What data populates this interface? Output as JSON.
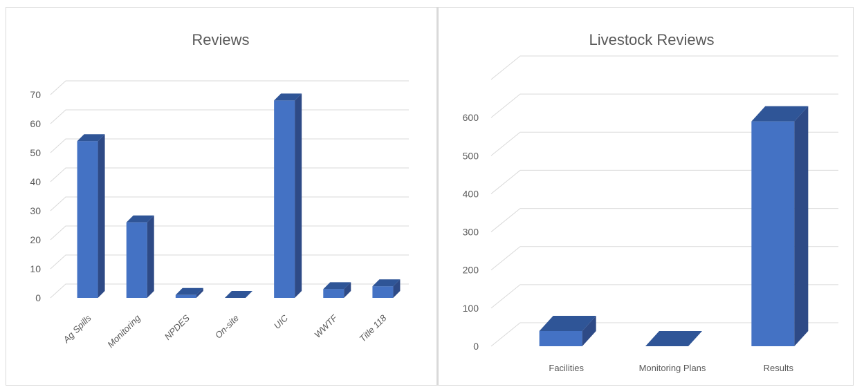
{
  "colors": {
    "bar_front": "#4472C4",
    "bar_top": "#2F5597",
    "bar_side": "#2E4A86",
    "grid": "#d9d9d9",
    "text": "#595959"
  },
  "chart_data": [
    {
      "type": "bar",
      "title": "Reviews",
      "xlabel": "",
      "ylabel": "",
      "ylim": [
        0,
        70
      ],
      "yticks": [
        0,
        10,
        20,
        30,
        40,
        50,
        60,
        70
      ],
      "categories": [
        "Ag Spills",
        "Monitoring",
        "NPDES",
        "On-site",
        "UIC",
        "WWTF",
        "Title 118"
      ],
      "values": [
        54,
        26,
        1,
        0,
        68,
        3,
        4
      ],
      "grid": true,
      "legend": "none",
      "category_label_rotation": "-45"
    },
    {
      "type": "bar",
      "title": "Livestock Reviews",
      "xlabel": "",
      "ylabel": "",
      "ylim": [
        0,
        700
      ],
      "yticks": [
        0,
        100,
        200,
        300,
        400,
        500,
        600
      ],
      "categories": [
        "Facilities",
        "Monitoring Plans",
        "Results"
      ],
      "values": [
        40,
        0,
        590
      ],
      "grid": true,
      "legend": "none",
      "category_label_rotation": "0"
    }
  ]
}
